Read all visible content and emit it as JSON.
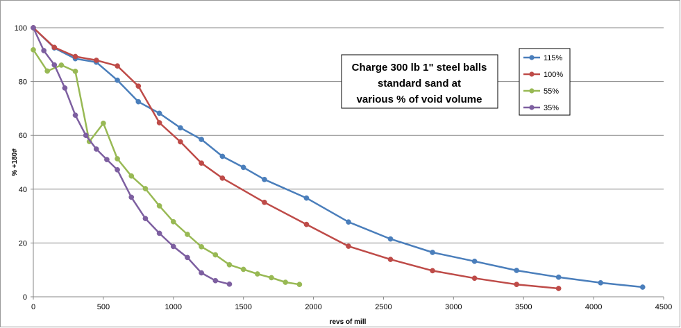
{
  "chart_data": {
    "type": "line",
    "title_lines": [
      "Charge 300 lb 1\" steel balls",
      "standard sand at",
      "various % of void volume"
    ],
    "xlabel": "revs of mill",
    "ylabel": "% +180#",
    "xlim": [
      0,
      4500
    ],
    "ylim": [
      0,
      100
    ],
    "x_ticks": [
      0,
      500,
      1000,
      1500,
      2000,
      2500,
      3000,
      3500,
      4000,
      4500
    ],
    "y_ticks": [
      0,
      20,
      40,
      60,
      80,
      100
    ],
    "grid": "horizontal",
    "legend_position": "right",
    "series": [
      {
        "name": "115%",
        "color": "#4a7ebb",
        "x": [
          0,
          150,
          300,
          450,
          600,
          750,
          900,
          1050,
          1200,
          1350,
          1500,
          1650,
          1950,
          2250,
          2550,
          2850,
          3150,
          3450,
          3750,
          4050,
          4350
        ],
        "y": [
          100,
          92.5,
          88.5,
          87.2,
          80.5,
          72.5,
          68.2,
          62.8,
          58.5,
          52.2,
          48.1,
          43.6,
          36.7,
          27.8,
          21.5,
          16.5,
          13.2,
          9.8,
          7.3,
          5.2,
          3.6
        ]
      },
      {
        "name": "100%",
        "color": "#be4b48",
        "x": [
          0,
          150,
          300,
          450,
          600,
          750,
          900,
          1050,
          1200,
          1350,
          1650,
          1950,
          2250,
          2550,
          2850,
          3150,
          3450,
          3750
        ],
        "y": [
          100,
          92.7,
          89.3,
          87.9,
          85.8,
          78.3,
          64.7,
          57.6,
          49.7,
          44.1,
          35.1,
          26.9,
          18.8,
          13.9,
          9.7,
          6.9,
          4.6,
          3.1
        ]
      },
      {
        "name": "55%",
        "color": "#98b954",
        "x": [
          0,
          100,
          200,
          300,
          400,
          500,
          600,
          700,
          800,
          900,
          1000,
          1100,
          1200,
          1300,
          1400,
          1500,
          1600,
          1700,
          1800,
          1900
        ],
        "y": [
          91.8,
          83.9,
          86.1,
          83.8,
          57.7,
          64.5,
          51.3,
          44.9,
          40.2,
          33.8,
          27.9,
          23.2,
          18.6,
          15.6,
          11.9,
          10.2,
          8.5,
          7.1,
          5.4,
          4.6
        ]
      },
      {
        "name": "35%",
        "color": "#7d5fa0",
        "x": [
          0,
          75,
          150,
          225,
          300,
          375,
          450,
          525,
          600,
          700,
          800,
          900,
          1000,
          1100,
          1200,
          1300,
          1400
        ],
        "y": [
          100,
          91.5,
          86.2,
          77.6,
          67.5,
          60.0,
          54.9,
          51.0,
          47.2,
          37.0,
          29.1,
          23.6,
          18.7,
          14.6,
          8.9,
          6.0,
          4.7
        ]
      }
    ]
  }
}
